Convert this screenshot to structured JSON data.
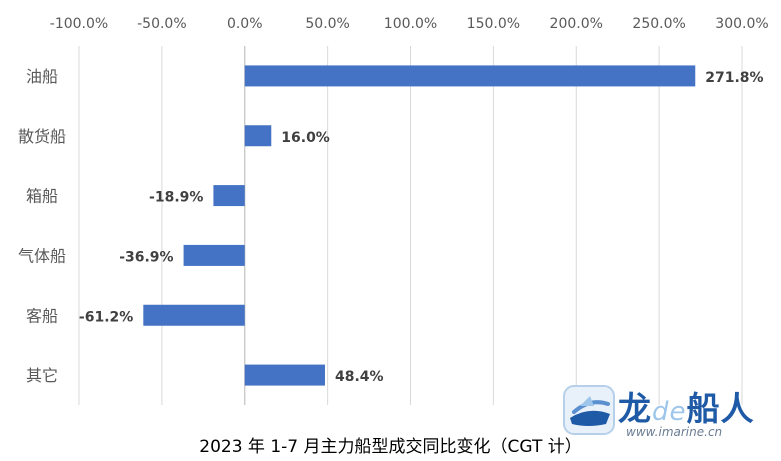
{
  "chart_data": {
    "type": "bar",
    "orientation": "horizontal",
    "categories": [
      "油船",
      "散货船",
      "箱船",
      "气体船",
      "客船",
      "其它"
    ],
    "values": [
      271.8,
      16.0,
      -18.9,
      -36.9,
      -61.2,
      48.4
    ],
    "data_labels": [
      "271.8%",
      "16.0%",
      "-18.9%",
      "-36.9%",
      "-61.2%",
      "48.4%"
    ],
    "x_ticks": [
      -100,
      -50,
      0,
      50,
      100,
      150,
      200,
      250,
      300
    ],
    "x_tick_labels": [
      "-100.0%",
      "-50.0%",
      "0.0%",
      "50.0%",
      "100.0%",
      "150.0%",
      "200.0%",
      "250.0%",
      "300.0%"
    ],
    "xlim": [
      -100,
      300
    ],
    "x_axis_position": "top",
    "grid": "vertical",
    "bar_color": "#4472c4",
    "title": "2023 年 1-7 月主力船型成交同比变化（CGT 计）"
  },
  "watermark": {
    "brand": "龙de船人",
    "brand_main": "龙",
    "brand_de": "de",
    "brand_rest": "船人",
    "url": "www.imarine.cn"
  }
}
